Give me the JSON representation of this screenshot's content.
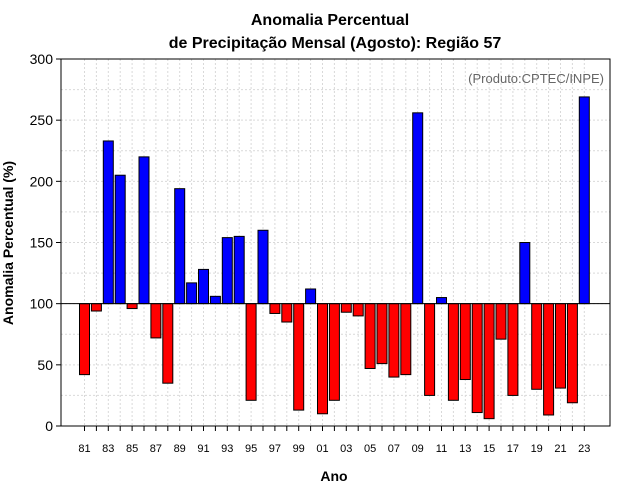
{
  "chart_data": {
    "type": "bar",
    "title_line1": "Anomalia Percentual",
    "title_line2": "de Precipitação Mensal (Agosto): Região 57",
    "xlabel": "Ano",
    "ylabel": "Anomalia Percentual (%)",
    "annotation": "(Produto:CPTEC/INPE)",
    "baseline": 100,
    "ylim": [
      0,
      300
    ],
    "yticks": [
      0,
      50,
      100,
      150,
      200,
      250,
      300
    ],
    "xtick_labels": [
      "81",
      "83",
      "85",
      "87",
      "89",
      "91",
      "93",
      "95",
      "97",
      "99",
      "01",
      "03",
      "05",
      "07",
      "09",
      "11",
      "13",
      "15",
      "17",
      "19",
      "21",
      "23"
    ],
    "grid": true,
    "colors": {
      "above": "#0000ff",
      "below": "#ff0000",
      "grid": "#d9d9d9",
      "annotation": "#666666"
    },
    "categories": [
      "1981",
      "1982",
      "1983",
      "1984",
      "1985",
      "1986",
      "1987",
      "1988",
      "1989",
      "1990",
      "1991",
      "1992",
      "1993",
      "1994",
      "1995",
      "1996",
      "1997",
      "1998",
      "1999",
      "2000",
      "2001",
      "2002",
      "2003",
      "2004",
      "2005",
      "2006",
      "2007",
      "2008",
      "2009",
      "2010",
      "2011",
      "2012",
      "2013",
      "2014",
      "2015",
      "2016",
      "2017",
      "2018",
      "2019",
      "2020",
      "2021",
      "2022",
      "2023"
    ],
    "values": [
      42,
      94,
      233,
      205,
      96,
      220,
      72,
      35,
      194,
      117,
      128,
      106,
      154,
      155,
      21,
      160,
      92,
      85,
      13,
      112,
      10,
      21,
      93,
      90,
      47,
      51,
      40,
      42,
      256,
      25,
      105,
      21,
      38,
      11,
      6,
      71,
      25,
      150,
      30,
      9,
      31,
      19,
      269
    ]
  }
}
